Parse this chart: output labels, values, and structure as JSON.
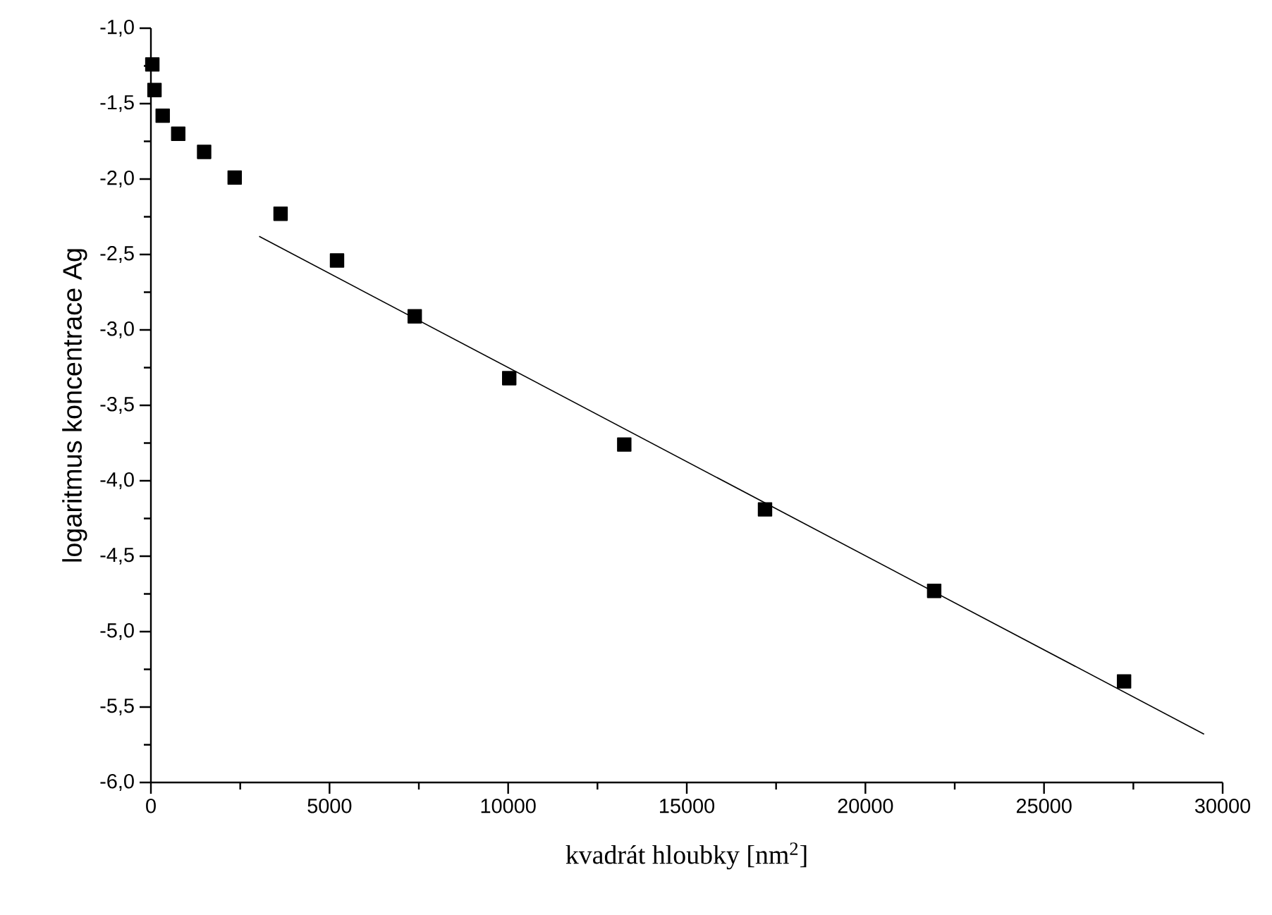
{
  "chart_data": {
    "type": "scatter",
    "xlabel": "kvadrát hloubky [nm$^{2}$]",
    "ylabel": "logaritmus koncentrace Ag",
    "xlim": [
      0,
      30000
    ],
    "ylim": [
      -6,
      -1
    ],
    "xticks": [
      0,
      5000,
      10000,
      15000,
      20000,
      25000,
      30000
    ],
    "yticks": [
      {
        "value": -6,
        "label": "-6,0"
      },
      {
        "value": -5.5,
        "label": "-5,5"
      },
      {
        "value": -5,
        "label": "-5,0"
      },
      {
        "value": -4.5,
        "label": "-4,5"
      },
      {
        "value": -4,
        "label": "-4,0"
      },
      {
        "value": -3.5,
        "label": "-3,5"
      },
      {
        "value": -3,
        "label": "-3,0"
      },
      {
        "value": -2.5,
        "label": "-2,5"
      },
      {
        "value": -2,
        "label": "-2,0"
      },
      {
        "value": -1.5,
        "label": "-1,5"
      },
      {
        "value": -1,
        "label": "-1,0"
      }
    ],
    "marker": "square",
    "grid": false,
    "series": [
      {
        "color": "#000000",
        "x": [
          40,
          100,
          330,
          765,
          1490,
          2345,
          3630,
          5210,
          7385,
          10030,
          13250,
          17190,
          21925,
          27240
        ],
        "values": [
          -1.24,
          -1.41,
          -1.58,
          -1.7,
          -1.82,
          -1.99,
          -2.23,
          -2.54,
          -2.91,
          -3.32,
          -3.76,
          -4.19,
          -4.73,
          -5.33
        ]
      },
      {
        "type": "line",
        "color": "#000000",
        "marker": "none",
        "x": [
          3030,
          29480
        ],
        "values": [
          -2.38,
          -5.68
        ]
      }
    ]
  }
}
